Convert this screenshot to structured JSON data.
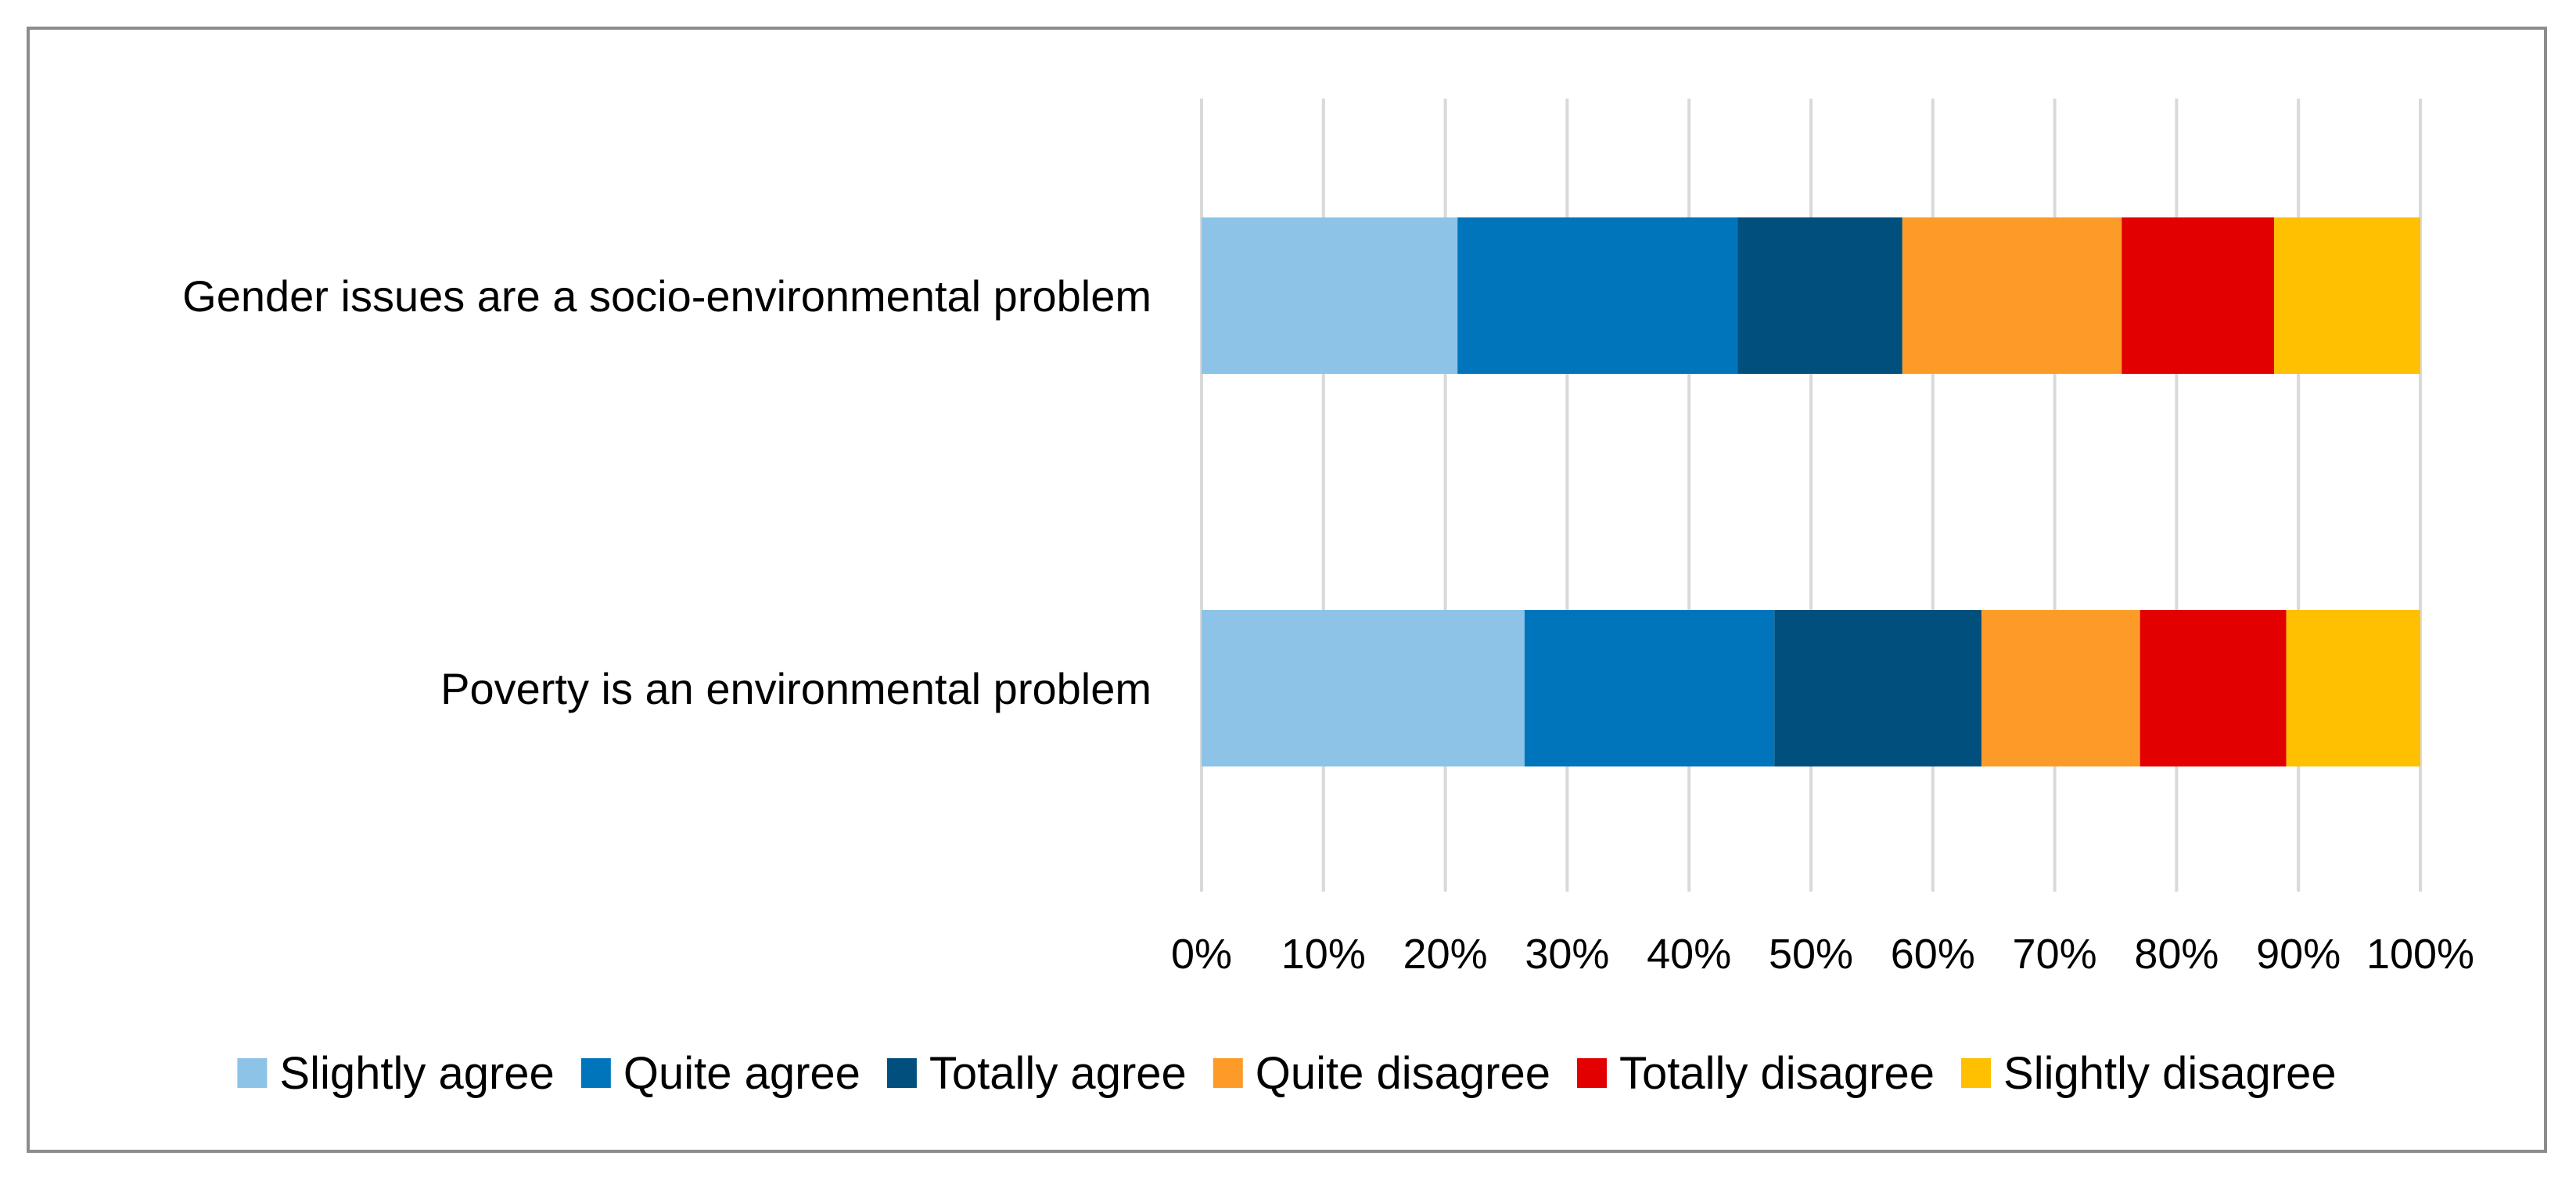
{
  "chart_data": {
    "type": "bar",
    "orientation": "horizontal",
    "stacked": true,
    "normalized_100": true,
    "title": "",
    "xlabel": "",
    "ylabel": "",
    "xlim": [
      0,
      100
    ],
    "categories": [
      "Gender issues are a socio-environmental problem",
      "Poverty is an environmental problem"
    ],
    "x_ticks": [
      "0%",
      "10%",
      "20%",
      "30%",
      "40%",
      "50%",
      "60%",
      "70%",
      "80%",
      "90%",
      "100%"
    ],
    "x_tick_values": [
      0,
      10,
      20,
      30,
      40,
      50,
      60,
      70,
      80,
      90,
      100
    ],
    "grid": true,
    "legend_position": "bottom",
    "series": [
      {
        "name": "Slightly agree",
        "color": "#8dc3e7",
        "values": [
          21,
          26.5
        ]
      },
      {
        "name": "Quite agree",
        "color": "#0075bb",
        "values": [
          23,
          20.5
        ]
      },
      {
        "name": "Totally agree",
        "color": "#004f7d",
        "values": [
          13.5,
          17
        ]
      },
      {
        "name": "Quite disagree",
        "color": "#fd9b29",
        "values": [
          18,
          13
        ]
      },
      {
        "name": "Totally disagree",
        "color": "#e20000",
        "values": [
          12.5,
          12
        ]
      },
      {
        "name": "Slightly disagree",
        "color": "#fec000",
        "values": [
          12,
          11
        ]
      }
    ]
  }
}
